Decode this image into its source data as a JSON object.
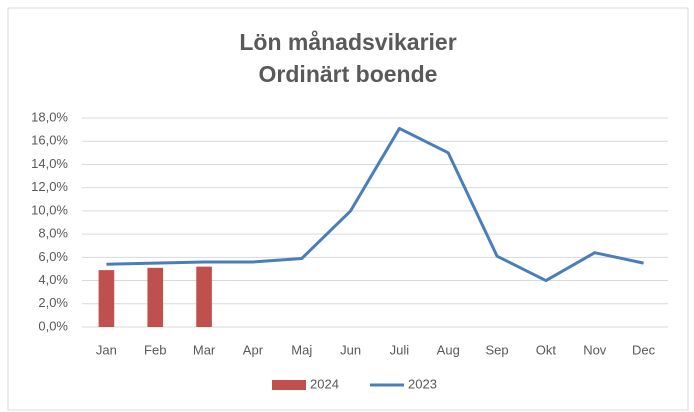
{
  "chart_data": {
    "type": "combo",
    "title": [
      "Lön månadsvikarier",
      "Ordinärt boende"
    ],
    "categories": [
      "Jan",
      "Feb",
      "Mar",
      "Apr",
      "Maj",
      "Jun",
      "Juli",
      "Aug",
      "Sep",
      "Okt",
      "Nov",
      "Dec"
    ],
    "series": [
      {
        "name": "2024",
        "type": "bar",
        "color": "#c0504d",
        "values": [
          4.9,
          5.1,
          5.2,
          null,
          null,
          null,
          null,
          null,
          null,
          null,
          null,
          null
        ]
      },
      {
        "name": "2023",
        "type": "line",
        "color": "#4a7ebb",
        "values": [
          5.4,
          5.5,
          5.6,
          5.6,
          5.9,
          10.0,
          17.1,
          15.0,
          6.1,
          4.0,
          6.4,
          5.5
        ]
      }
    ],
    "ylim": [
      0,
      18
    ],
    "yticks": [
      {
        "value": 0,
        "label": "0,0%"
      },
      {
        "value": 2,
        "label": "2,0%"
      },
      {
        "value": 4,
        "label": "4,0%"
      },
      {
        "value": 6,
        "label": "6,0%"
      },
      {
        "value": 8,
        "label": "8,0%"
      },
      {
        "value": 10,
        "label": "10,0%"
      },
      {
        "value": 12,
        "label": "12,0%"
      },
      {
        "value": 14,
        "label": "14,0%"
      },
      {
        "value": 16,
        "label": "16,0%"
      },
      {
        "value": 18,
        "label": "18,0%"
      }
    ],
    "grid": true,
    "legend": "bottom"
  }
}
